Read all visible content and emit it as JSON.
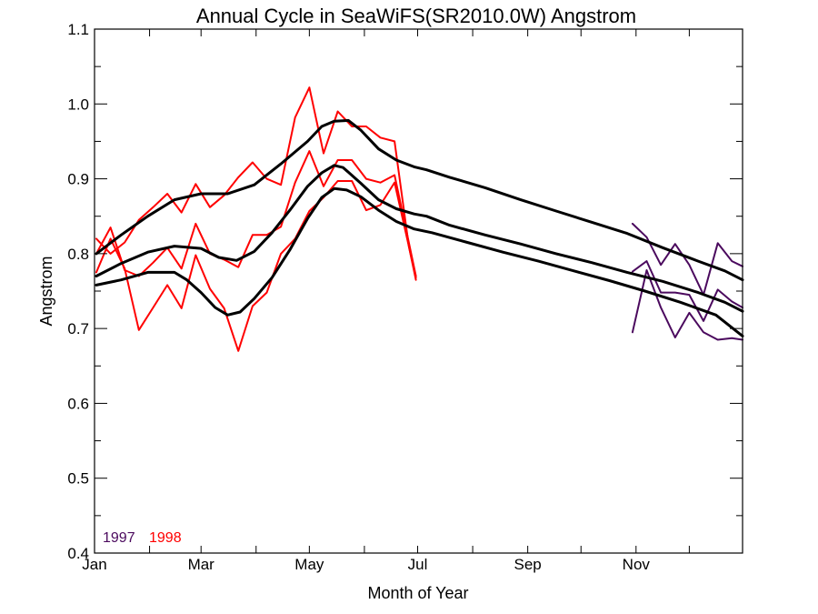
{
  "chart_data": {
    "type": "line",
    "title": "Annual Cycle in SeaWiFS(SR2010.0W) Angstrom",
    "xlabel": "Month of Year",
    "ylabel": "Angstrom",
    "xlim": [
      0,
      365
    ],
    "ylim": [
      0.4,
      1.1
    ],
    "grid": false,
    "x_ticks": [
      {
        "day": 0,
        "label": "Jan"
      },
      {
        "day": 60,
        "label": "Mar"
      },
      {
        "day": 121,
        "label": "May"
      },
      {
        "day": 182,
        "label": "Jul"
      },
      {
        "day": 244,
        "label": "Sep"
      },
      {
        "day": 305,
        "label": "Nov"
      }
    ],
    "x_minor_ticks": [
      0,
      31,
      60,
      91,
      121,
      152,
      182,
      213,
      244,
      274,
      305,
      335,
      365
    ],
    "y_ticks": [
      0.4,
      0.5,
      0.6,
      0.7,
      0.8,
      0.9,
      1.0,
      1.1
    ],
    "y_tick_labels": [
      "0.4",
      "0.5",
      "0.6",
      "0.7",
      "0.8",
      "0.9",
      "1.0",
      "1.1"
    ],
    "legend": [
      {
        "label": "1997",
        "color": "#4b0a5e"
      },
      {
        "label": "1998",
        "color": "#ff0000"
      }
    ],
    "legend_position": "bottom-left",
    "series": [
      {
        "group": "1998",
        "stat": "upper",
        "color": "#ff0000",
        "x": [
          1,
          9,
          17,
          25,
          33,
          41,
          49,
          57,
          65,
          73,
          81,
          89,
          97,
          105,
          113,
          121,
          129,
          137,
          145,
          153,
          161,
          169,
          177,
          181
        ],
        "y": [
          0.82,
          0.8,
          0.815,
          0.845,
          0.862,
          0.88,
          0.855,
          0.893,
          0.862,
          0.878,
          0.902,
          0.922,
          0.9,
          0.892,
          0.982,
          1.022,
          0.934,
          0.99,
          0.97,
          0.97,
          0.955,
          0.95,
          0.81,
          0.768
        ]
      },
      {
        "group": "1998",
        "stat": "mean",
        "color": "#ff0000",
        "x": [
          1,
          9,
          17,
          25,
          33,
          41,
          49,
          57,
          65,
          73,
          81,
          89,
          97,
          105,
          113,
          121,
          129,
          137,
          145,
          153,
          161,
          169,
          177,
          181
        ],
        "y": [
          0.8,
          0.835,
          0.778,
          0.77,
          0.788,
          0.808,
          0.78,
          0.84,
          0.8,
          0.792,
          0.782,
          0.825,
          0.825,
          0.836,
          0.895,
          0.937,
          0.89,
          0.925,
          0.925,
          0.9,
          0.895,
          0.905,
          0.815,
          0.77
        ]
      },
      {
        "group": "1998",
        "stat": "lower",
        "color": "#ff0000",
        "x": [
          1,
          9,
          17,
          25,
          33,
          41,
          49,
          57,
          65,
          73,
          81,
          89,
          97,
          105,
          113,
          121,
          129,
          137,
          145,
          153,
          161,
          169,
          177,
          181
        ],
        "y": [
          0.775,
          0.82,
          0.78,
          0.698,
          0.728,
          0.758,
          0.727,
          0.798,
          0.753,
          0.727,
          0.67,
          0.73,
          0.748,
          0.8,
          0.82,
          0.857,
          0.875,
          0.897,
          0.897,
          0.858,
          0.865,
          0.895,
          0.81,
          0.765
        ]
      },
      {
        "group": "1997",
        "stat": "upper",
        "color": "#4b0a5e",
        "x": [
          303,
          311,
          319,
          327,
          335,
          343,
          351,
          359,
          365
        ],
        "y": [
          0.84,
          0.822,
          0.785,
          0.813,
          0.785,
          0.745,
          0.814,
          0.79,
          0.783
        ]
      },
      {
        "group": "1997",
        "stat": "mean",
        "color": "#4b0a5e",
        "x": [
          303,
          311,
          319,
          327,
          335,
          343,
          351,
          359,
          365
        ],
        "y": [
          0.776,
          0.79,
          0.748,
          0.748,
          0.745,
          0.71,
          0.752,
          0.736,
          0.728
        ]
      },
      {
        "group": "1997",
        "stat": "lower",
        "color": "#4b0a5e",
        "x": [
          303,
          311,
          319,
          327,
          335,
          343,
          351,
          359,
          365
        ],
        "y": [
          0.695,
          0.778,
          0.728,
          0.688,
          0.721,
          0.695,
          0.685,
          0.687,
          0.685
        ]
      },
      {
        "group": "climatology",
        "stat": "upper",
        "color": "#000000",
        "x": [
          1,
          15,
          30,
          45,
          60,
          75,
          90,
          105,
          120,
          128,
          135,
          143,
          150,
          160,
          170,
          180,
          187,
          200,
          220,
          240,
          260,
          280,
          300,
          320,
          340,
          355,
          365
        ],
        "y": [
          0.8,
          0.825,
          0.85,
          0.872,
          0.88,
          0.88,
          0.892,
          0.92,
          0.95,
          0.97,
          0.977,
          0.978,
          0.965,
          0.94,
          0.925,
          0.916,
          0.912,
          0.902,
          0.888,
          0.872,
          0.857,
          0.842,
          0.827,
          0.808,
          0.79,
          0.777,
          0.765
        ]
      },
      {
        "group": "climatology",
        "stat": "mean",
        "color": "#000000",
        "x": [
          1,
          15,
          30,
          45,
          60,
          70,
          80,
          90,
          100,
          110,
          120,
          128,
          135,
          140,
          150,
          160,
          170,
          180,
          187,
          200,
          220,
          240,
          260,
          280,
          300,
          320,
          340,
          355,
          365
        ],
        "y": [
          0.77,
          0.787,
          0.802,
          0.81,
          0.807,
          0.795,
          0.791,
          0.803,
          0.828,
          0.858,
          0.89,
          0.908,
          0.918,
          0.915,
          0.894,
          0.872,
          0.86,
          0.853,
          0.85,
          0.838,
          0.825,
          0.813,
          0.8,
          0.788,
          0.775,
          0.763,
          0.748,
          0.735,
          0.723
        ]
      },
      {
        "group": "climatology",
        "stat": "lower",
        "color": "#000000",
        "x": [
          1,
          15,
          30,
          45,
          52,
          60,
          68,
          75,
          82,
          90,
          100,
          110,
          120,
          128,
          135,
          142,
          150,
          160,
          170,
          180,
          190,
          210,
          230,
          250,
          270,
          290,
          310,
          330,
          350,
          365
        ],
        "y": [
          0.758,
          0.765,
          0.775,
          0.775,
          0.765,
          0.748,
          0.728,
          0.718,
          0.722,
          0.74,
          0.768,
          0.805,
          0.847,
          0.875,
          0.887,
          0.885,
          0.876,
          0.858,
          0.843,
          0.833,
          0.828,
          0.815,
          0.802,
          0.79,
          0.777,
          0.764,
          0.75,
          0.735,
          0.718,
          0.69
        ]
      }
    ]
  }
}
